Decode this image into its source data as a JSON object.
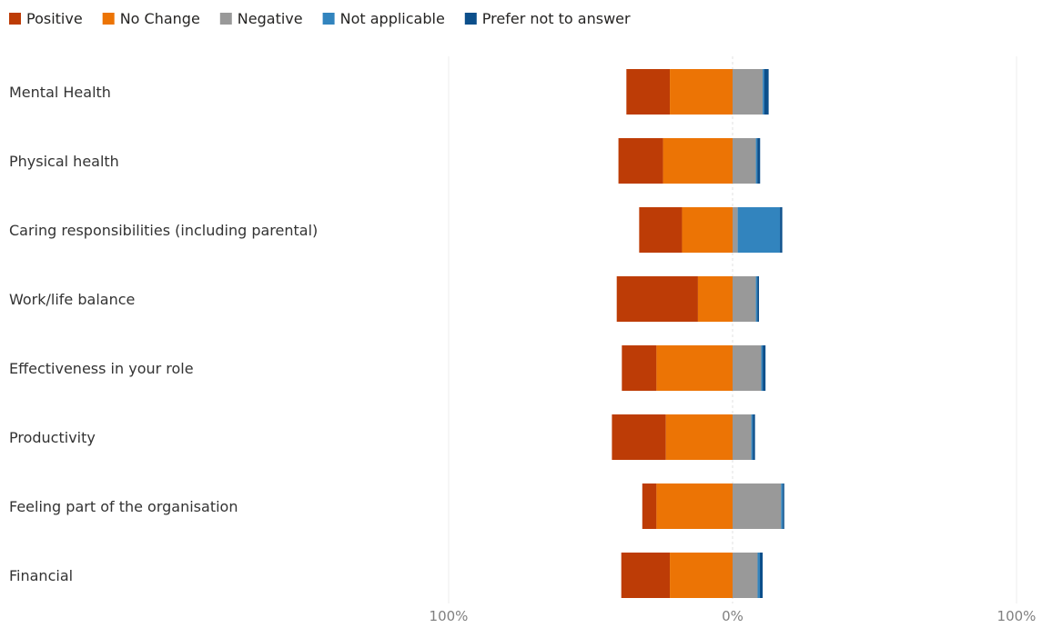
{
  "chart_data": {
    "type": "bar",
    "orientation": "horizontal",
    "stacked": "diverging",
    "title": "",
    "xlabel": "",
    "ylabel": "",
    "categories": [
      "Mental Health",
      "Physical health",
      "Caring responsibilities (including parental)",
      "Work/life balance",
      "Effectiveness in your role",
      "Productivity",
      "Feeling part of the organisation",
      "Financial"
    ],
    "series": [
      {
        "name": "Positive",
        "color": "#BD3C06",
        "values": [
          15.3,
          15.7,
          15.1,
          28.6,
          12.2,
          19.0,
          5.0,
          17.1
        ]
      },
      {
        "name": "No Change",
        "color": "#EC7405",
        "values": [
          22.1,
          24.5,
          17.8,
          12.2,
          26.8,
          23.5,
          26.8,
          22.1
        ]
      },
      {
        "name": "Negative",
        "color": "#999999",
        "values": [
          10.6,
          8.2,
          1.8,
          8.2,
          10.1,
          6.6,
          17.1,
          8.8
        ]
      },
      {
        "name": "Not applicable",
        "color": "#3284BE",
        "values": [
          0.5,
          0.5,
          14.9,
          0.5,
          0.5,
          0.5,
          0.6,
          0.8
        ]
      },
      {
        "name": "Prefer not to answer",
        "color": "#0C4F8B",
        "values": [
          1.6,
          1.0,
          0.8,
          0.6,
          1.0,
          0.8,
          0.5,
          1.0
        ]
      }
    ],
    "neutral_series": "No Change",
    "negative_side_series": [
      "Positive",
      "No Change"
    ],
    "xlim": [
      -100,
      100
    ],
    "xticks": [
      {
        "value": -100,
        "label": "100%"
      },
      {
        "value": 0,
        "label": "0%"
      },
      {
        "value": 100,
        "label": "100%"
      }
    ],
    "grid": true,
    "legend": {
      "position": "top-left"
    }
  }
}
